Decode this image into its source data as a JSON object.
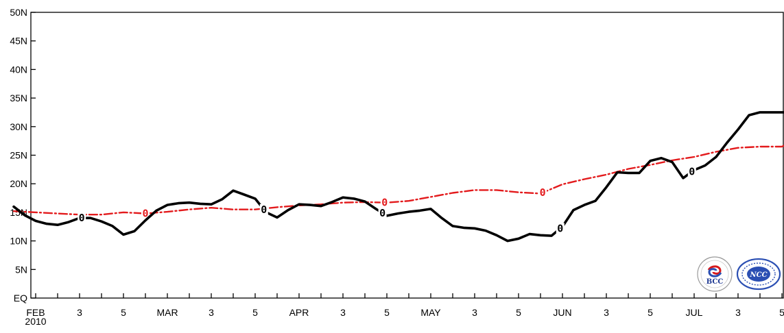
{
  "chart_data": {
    "type": "line",
    "title": "",
    "xlabel": "",
    "ylabel": "",
    "ylim": [
      0,
      50
    ],
    "grid": false,
    "y_ticks": [
      {
        "value": 0,
        "label": "EQ"
      },
      {
        "value": 5,
        "label": "5N"
      },
      {
        "value": 10,
        "label": "10N"
      },
      {
        "value": 15,
        "label": "15N"
      },
      {
        "value": 20,
        "label": "20N"
      },
      {
        "value": 25,
        "label": "25N"
      },
      {
        "value": 30,
        "label": "30N"
      },
      {
        "value": 35,
        "label": "35N"
      },
      {
        "value": 40,
        "label": "40N"
      },
      {
        "value": 45,
        "label": "45N"
      },
      {
        "value": 50,
        "label": "50N"
      }
    ],
    "x_ticks": [
      {
        "label": "FEB",
        "sublabel": "2010",
        "pos": 1
      },
      {
        "label": "3",
        "pos": 3
      },
      {
        "label": "5",
        "pos": 5
      },
      {
        "label": "MAR",
        "pos": 7
      },
      {
        "label": "3",
        "pos": 9
      },
      {
        "label": "5",
        "pos": 11
      },
      {
        "label": "APR",
        "pos": 13
      },
      {
        "label": "3",
        "pos": 15
      },
      {
        "label": "5",
        "pos": 17
      },
      {
        "label": "MAY",
        "pos": 19
      },
      {
        "label": "3",
        "pos": 21
      },
      {
        "label": "5",
        "pos": 23
      },
      {
        "label": "JUN",
        "pos": 25
      },
      {
        "label": "3",
        "pos": 27
      },
      {
        "label": "5",
        "pos": 29
      },
      {
        "label": "JUL",
        "pos": 31
      },
      {
        "label": "3",
        "pos": 33
      },
      {
        "label": "5",
        "pos": 35
      }
    ],
    "series": [
      {
        "style": "solid-black",
        "color": "#000000",
        "contour_label": "0",
        "label_x": [
          3.1,
          11.4,
          16.8,
          24.9,
          30.9
        ],
        "x": [
          0,
          0.5,
          1,
          1.5,
          2,
          2.5,
          3,
          3.5,
          4,
          4.5,
          5,
          5.5,
          6,
          6.5,
          7,
          7.5,
          8,
          8.5,
          9,
          9.5,
          10,
          10.5,
          11,
          11.5,
          12,
          12.5,
          13,
          13.5,
          14,
          14.5,
          15,
          15.5,
          16,
          16.5,
          17,
          17.5,
          18,
          18.5,
          19,
          19.5,
          20,
          20.5,
          21,
          21.5,
          22,
          22.5,
          23,
          23.5,
          24,
          24.5,
          25,
          25.5,
          26,
          26.5,
          27,
          27.5,
          28,
          28.5,
          29,
          29.5,
          30,
          30.5,
          31,
          31.5,
          32,
          32.5,
          33,
          33.5,
          34,
          34.5,
          35,
          35.5
        ],
        "values": [
          16,
          14.5,
          13.5,
          13,
          12.8,
          13.3,
          14,
          14,
          13.4,
          12.6,
          11.1,
          11.7,
          13.6,
          15.3,
          16.3,
          16.6,
          16.7,
          16.5,
          16.4,
          17.3,
          18.8,
          18.1,
          17.4,
          15,
          14.1,
          15.4,
          16.4,
          16.3,
          16.1,
          16.8,
          17.6,
          17.4,
          16.9,
          15.6,
          14.4,
          14.8,
          15.1,
          15.3,
          15.6,
          14,
          12.6,
          12.3,
          12.2,
          11.8,
          11,
          10,
          10.4,
          11.2,
          11,
          10.9,
          12.5,
          15.4,
          16.3,
          17,
          19.4,
          22,
          21.9,
          21.9,
          24,
          24.5,
          23.8,
          21,
          22.4,
          23.2,
          24.7,
          27.2,
          29.5,
          32,
          32.5,
          32.5,
          32.5,
          32.5
        ]
      },
      {
        "style": "dash-dot-red",
        "color": "#e31a1c",
        "contour_label": "0",
        "label_x": [
          6,
          16.9,
          24.1
        ],
        "x": [
          0,
          1,
          2,
          3,
          4,
          5,
          6,
          7,
          8,
          9,
          10,
          11,
          12,
          13,
          14,
          15,
          16,
          17,
          18,
          19,
          20,
          21,
          22,
          23,
          24,
          25,
          26,
          27,
          28,
          29,
          30,
          31,
          32,
          33,
          34,
          35,
          35.5
        ],
        "values": [
          15.2,
          15,
          14.8,
          14.6,
          14.6,
          15,
          14.8,
          15.1,
          15.5,
          15.8,
          15.5,
          15.5,
          15.9,
          16.2,
          16.4,
          16.7,
          16.8,
          16.7,
          17,
          17.7,
          18.4,
          18.9,
          18.9,
          18.5,
          18.3,
          19.9,
          20.8,
          21.6,
          22.6,
          23.3,
          24.1,
          24.7,
          25.6,
          26.3,
          26.5,
          26.5,
          27.6
        ]
      }
    ]
  },
  "logos": {
    "bcc": "BCC",
    "ncc": "NCC"
  }
}
